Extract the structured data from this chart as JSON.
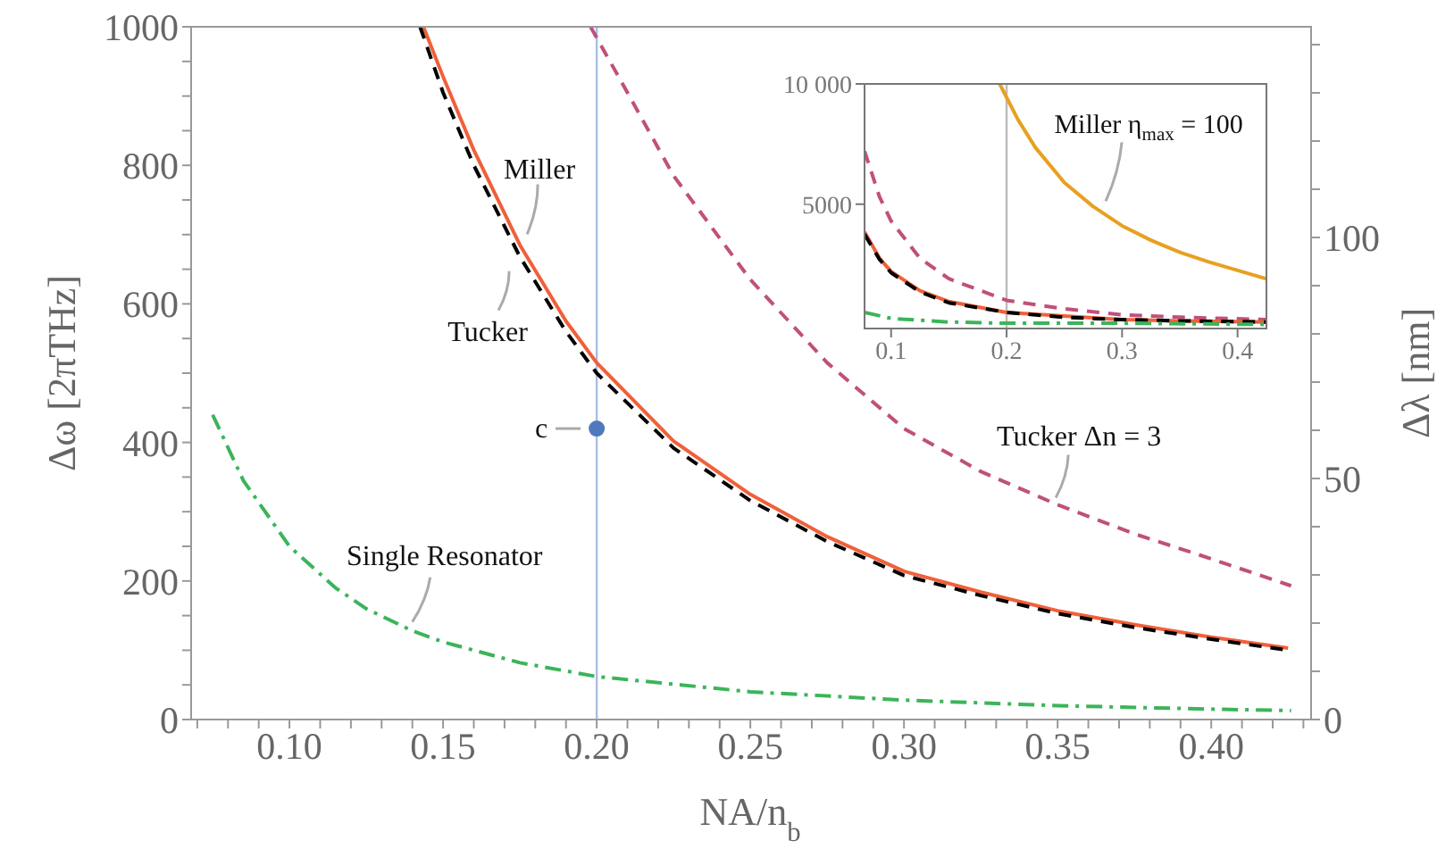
{
  "chart_data": [
    {
      "type": "line",
      "xlabel": "NA/n$_{b}$",
      "ylabel": "Δω [2πTHz]",
      "y2label": "Δλ [nm]",
      "xlim": [
        0.068,
        0.4325
      ],
      "ylim": [
        0,
        1000
      ],
      "y2lim": [
        0,
        143.7
      ],
      "xticks": [
        {
          "value": 0.07,
          "label": null
        },
        {
          "value": 0.08,
          "label": null
        },
        {
          "value": 0.09,
          "label": null
        },
        {
          "value": 0.1,
          "label": "0.10"
        },
        {
          "value": 0.11,
          "label": null
        },
        {
          "value": 0.12,
          "label": null
        },
        {
          "value": 0.13,
          "label": null
        },
        {
          "value": 0.14,
          "label": null
        },
        {
          "value": 0.15,
          "label": "0.15"
        },
        {
          "value": 0.16,
          "label": null
        },
        {
          "value": 0.17,
          "label": null
        },
        {
          "value": 0.18,
          "label": null
        },
        {
          "value": 0.19,
          "label": null
        },
        {
          "value": 0.2,
          "label": "0.20"
        },
        {
          "value": 0.21,
          "label": null
        },
        {
          "value": 0.22,
          "label": null
        },
        {
          "value": 0.23,
          "label": null
        },
        {
          "value": 0.24,
          "label": null
        },
        {
          "value": 0.25,
          "label": "0.25"
        },
        {
          "value": 0.26,
          "label": null
        },
        {
          "value": 0.27,
          "label": null
        },
        {
          "value": 0.28,
          "label": null
        },
        {
          "value": 0.29,
          "label": null
        },
        {
          "value": 0.3,
          "label": "0.30"
        },
        {
          "value": 0.31,
          "label": null
        },
        {
          "value": 0.32,
          "label": null
        },
        {
          "value": 0.33,
          "label": null
        },
        {
          "value": 0.34,
          "label": null
        },
        {
          "value": 0.35,
          "label": "0.35"
        },
        {
          "value": 0.36,
          "label": null
        },
        {
          "value": 0.37,
          "label": null
        },
        {
          "value": 0.38,
          "label": null
        },
        {
          "value": 0.39,
          "label": null
        },
        {
          "value": 0.4,
          "label": "0.40"
        },
        {
          "value": 0.41,
          "label": null
        },
        {
          "value": 0.42,
          "label": null
        },
        {
          "value": 0.43,
          "label": null
        }
      ],
      "yticks": [
        0,
        {
          "value": 50,
          "label": null
        },
        {
          "value": 100,
          "label": null
        },
        {
          "value": 150,
          "label": null
        },
        200,
        {
          "value": 250,
          "label": null
        },
        {
          "value": 300,
          "label": null
        },
        {
          "value": 350,
          "label": null
        },
        400,
        {
          "value": 450,
          "label": null
        },
        {
          "value": 500,
          "label": null
        },
        {
          "value": 550,
          "label": null
        },
        600,
        {
          "value": 650,
          "label": null
        },
        {
          "value": 700,
          "label": null
        },
        {
          "value": 750,
          "label": null
        },
        800,
        {
          "value": 850,
          "label": null
        },
        {
          "value": 900,
          "label": null
        },
        {
          "value": 950,
          "label": null
        },
        1000
      ],
      "y2ticks": [
        0,
        {
          "value": 10,
          "label": null
        },
        {
          "value": 20,
          "label": null
        },
        {
          "value": 30,
          "label": null
        },
        {
          "value": 40,
          "label": null
        },
        50,
        {
          "value": 60,
          "label": null
        },
        {
          "value": 70,
          "label": null
        },
        {
          "value": 80,
          "label": null
        },
        {
          "value": 90,
          "label": null
        },
        100,
        {
          "value": 110,
          "label": null
        },
        {
          "value": 120,
          "label": null
        },
        {
          "value": 130,
          "label": null
        },
        {
          "value": 140,
          "label": null
        }
      ],
      "grid": false,
      "legend": false,
      "marker": "none",
      "ref_lines": [
        {
          "axis": "x",
          "value": 0.2,
          "color": "#a9bde0"
        }
      ],
      "series": [
        {
          "name": "Miller",
          "color": "#f0603a",
          "line_style": "solid",
          "x": [
            0.1436,
            0.15,
            0.16,
            0.175,
            0.19,
            0.2,
            0.225,
            0.25,
            0.275,
            0.3,
            0.325,
            0.35,
            0.375,
            0.4,
            0.425
          ],
          "values": [
            1000,
            928,
            822,
            685,
            575,
            515,
            402,
            325,
            264,
            214,
            184,
            157,
            137,
            119,
            103
          ]
        },
        {
          "name": "Tucker",
          "color": "#000000",
          "line_style": "dashed",
          "x": [
            0.1425,
            0.15,
            0.16,
            0.175,
            0.19,
            0.2,
            0.225,
            0.25,
            0.275,
            0.3,
            0.325,
            0.35,
            0.375,
            0.4,
            0.425
          ],
          "values": [
            1000,
            905,
            800,
            668,
            560,
            500,
            392,
            316,
            257,
            208,
            179,
            153,
            133,
            116,
            100
          ]
        },
        {
          "name": "Tucker Δn = 3",
          "color": "#c0507a",
          "line_style": "dashed",
          "x": [
            0.198,
            0.21,
            0.225,
            0.25,
            0.275,
            0.3,
            0.325,
            0.35,
            0.375,
            0.4,
            0.426
          ],
          "values": [
            1000,
            905,
            785,
            635,
            515,
            420,
            358,
            310,
            268,
            232,
            193
          ]
        },
        {
          "name": "Single Resonator",
          "color": "#3cb45a",
          "line_style": "dashdot",
          "x": [
            0.075,
            0.085,
            0.1,
            0.115,
            0.125,
            0.14,
            0.15,
            0.175,
            0.2,
            0.25,
            0.3,
            0.35,
            0.4,
            0.426
          ],
          "values": [
            440,
            345,
            250,
            190,
            160,
            128,
            112,
            82,
            62,
            40,
            28,
            20,
            15,
            13
          ]
        },
        {
          "name": "c",
          "type": "scatter",
          "marker": "circle",
          "color": "#4f79bf",
          "x": [
            0.2
          ],
          "values": [
            420
          ]
        }
      ]
    },
    {
      "type": "line",
      "xlim": [
        0.077,
        0.425
      ],
      "ylim": [
        -170,
        10000
      ],
      "xticks": [
        0.1,
        0.2,
        0.3,
        0.4
      ],
      "yticks": [
        5000,
        {
          "value": 10000,
          "label": "10 000"
        }
      ],
      "marker": "none",
      "ref_lines": [
        {
          "axis": "x",
          "value": 0.2,
          "color": "#bbbbbb"
        }
      ],
      "series": [
        {
          "name": "Miller η$_{max}$ = 100",
          "color": "#e8a020",
          "line_style": "solid",
          "x": [
            0.194,
            0.21,
            0.225,
            0.25,
            0.275,
            0.3,
            0.325,
            0.35,
            0.375,
            0.4,
            0.425
          ],
          "values": [
            10000,
            8500,
            7350,
            5900,
            4900,
            4100,
            3500,
            3000,
            2600,
            2250,
            1900
          ]
        },
        {
          "color": "#c0507a",
          "line_style": "dashed",
          "x": [
            0.077,
            0.09,
            0.1,
            0.125,
            0.15,
            0.2,
            0.25,
            0.3,
            0.35,
            0.425
          ],
          "values": [
            7200,
            5300,
            4300,
            2750,
            1900,
            1000,
            650,
            400,
            300,
            200
          ]
        },
        {
          "color": "#f0603a",
          "line_style": "solid",
          "x": [
            0.077,
            0.09,
            0.1,
            0.125,
            0.15,
            0.2,
            0.25,
            0.3,
            0.35,
            0.425
          ],
          "values": [
            3850,
            2750,
            2200,
            1400,
            950,
            500,
            350,
            200,
            150,
            100
          ]
        },
        {
          "color": "#000000",
          "line_style": "dashed",
          "x": [
            0.077,
            0.09,
            0.1,
            0.125,
            0.15,
            0.2,
            0.25,
            0.3,
            0.35,
            0.425
          ],
          "values": [
            3750,
            2700,
            2150,
            1350,
            900,
            500,
            300,
            200,
            150,
            100
          ]
        },
        {
          "color": "#3cb45a",
          "line_style": "dashdot",
          "x": [
            0.077,
            0.1,
            0.15,
            0.2,
            0.3,
            0.425
          ],
          "values": [
            500,
            250,
            100,
            50,
            50,
            0
          ]
        }
      ]
    }
  ]
}
